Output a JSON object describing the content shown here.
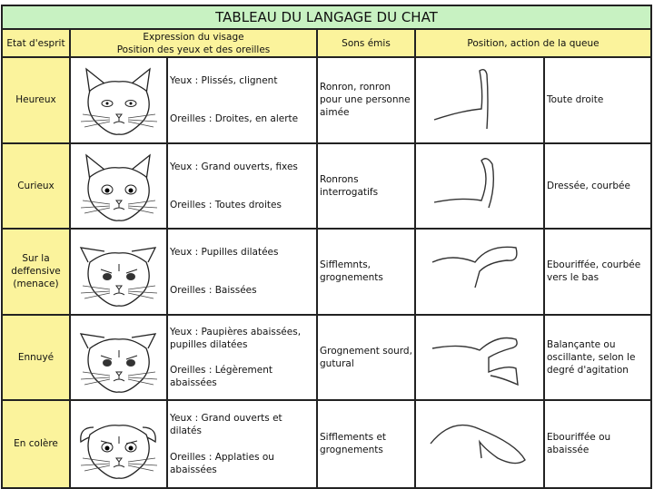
{
  "title": "TABLEAU DU LANGAGE DU CHAT",
  "headers": {
    "state": "Etat d'esprit",
    "face_line1": "Expression du visage",
    "face_line2": "Position des yeux et des oreilles",
    "sounds": "Sons émis",
    "tail": "Position, action de la queue"
  },
  "rows": [
    {
      "state": "Heureux",
      "eyes": "Yeux : Plissés, clignent",
      "ears": "Oreilles : Droites, en alerte",
      "sounds": "Ronron, ronron pour une personne aimée",
      "tail": "Toute droite"
    },
    {
      "state": "Curieux",
      "eyes": "Yeux : Grand ouverts, fixes",
      "ears": "Oreilles : Toutes droites",
      "sounds": "Ronrons interrogatifs",
      "tail": "Dressée, courbée"
    },
    {
      "state": "Sur la deffensive (menace)",
      "eyes": "Yeux : Pupilles dilatées",
      "ears": "Oreilles : Baissées",
      "sounds": "Sifflemnts, grognements",
      "tail": "Ebouriffée, courbée vers le bas"
    },
    {
      "state": "Ennuyé",
      "eyes": "Yeux : Paupières abaissées, pupilles dilatées",
      "ears": "Oreilles : Légèrement abaissées",
      "sounds": "Grognement sourd, gutural",
      "tail": "Balançante ou oscillante, selon le degré d'agitation"
    },
    {
      "state": "En colère",
      "eyes": "Yeux : Grand ouverts et dilatés",
      "ears": "Oreilles : Applaties ou abaissées",
      "sounds": "Sifflements et grognements",
      "tail": "Ebouriffée ou abaissée"
    }
  ],
  "colors": {
    "title_bg": "#c8f2c2",
    "header_bg": "#fbf39c"
  }
}
